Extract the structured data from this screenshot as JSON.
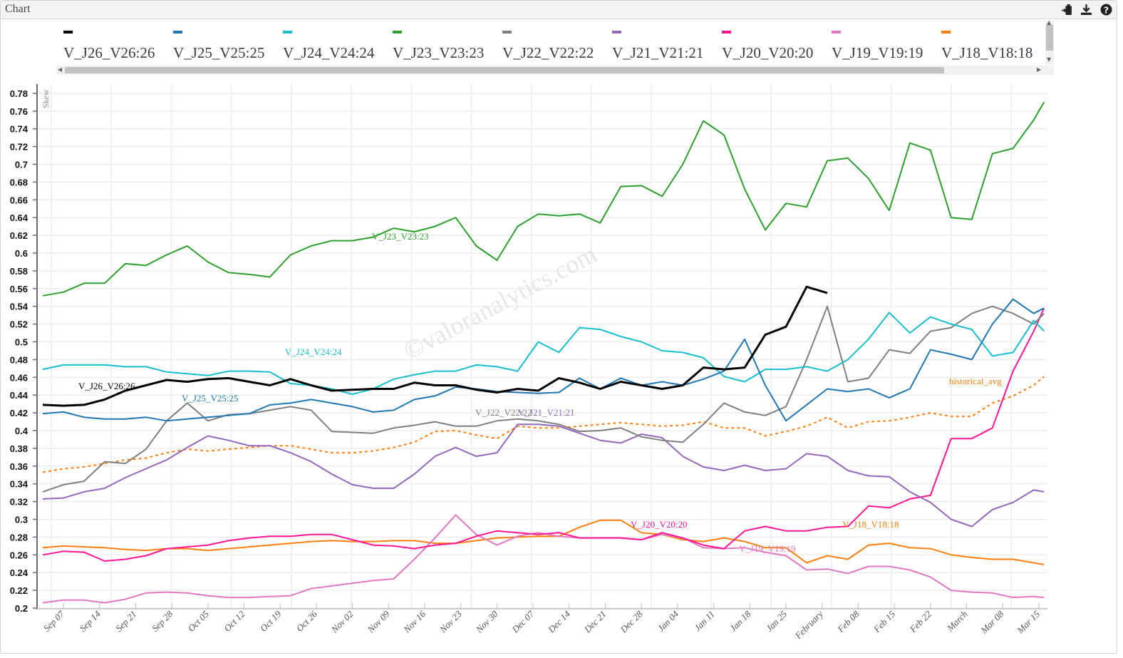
{
  "window": {
    "title": "Chart",
    "icons": [
      "export-icon",
      "download-icon",
      "help-icon"
    ]
  },
  "chart_data": {
    "type": "line",
    "ylabel": "Skew",
    "ylim": [
      0.2,
      0.79
    ],
    "yticks": [
      "0.2",
      "0.22",
      "0.24",
      "0.26",
      "0.28",
      "0.3",
      "0.32",
      "0.34",
      "0.36",
      "0.38",
      "0.4",
      "0.42",
      "0.44",
      "0.46",
      "0.48",
      "0.5",
      "0.52",
      "0.54",
      "0.56",
      "0.58",
      "0.6",
      "0.62",
      "0.64",
      "0.66",
      "0.68",
      "0.7",
      "0.72",
      "0.74",
      "0.76",
      "0.78"
    ],
    "xticks": [
      "Sep 07",
      "Sep 14",
      "Sep 21",
      "Sep 28",
      "Oct 05",
      "Oct 12",
      "Oct 19",
      "Oct 26",
      "Nov 02",
      "Nov 09",
      "Nov 16",
      "Nov 23",
      "Nov 30",
      "Dec 07",
      "Dec 14",
      "Dec 21",
      "Dec 28",
      "Jan 04",
      "Jan 11",
      "Jan 18",
      "Jan 25",
      "February",
      "Feb 08",
      "Feb 15",
      "Feb 22",
      "March",
      "Mar 08",
      "Mar 15"
    ],
    "grid": true,
    "legend_position": "top",
    "watermark": "©valoranalytics.com",
    "x": [
      "Sep 03",
      "Sep 07",
      "Sep 11",
      "Sep 15",
      "Sep 19",
      "Sep 23",
      "Sep 27",
      "Oct 01",
      "Oct 05",
      "Oct 09",
      "Oct 13",
      "Oct 17",
      "Oct 21",
      "Oct 25",
      "Oct 29",
      "Nov 02",
      "Nov 06",
      "Nov 10",
      "Nov 14",
      "Nov 18",
      "Nov 22",
      "Nov 26",
      "Nov 30",
      "Dec 04",
      "Dec 08",
      "Dec 12",
      "Dec 16",
      "Dec 20",
      "Dec 24",
      "Dec 28",
      "Jan 01",
      "Jan 05",
      "Jan 09",
      "Jan 13",
      "Jan 17",
      "Jan 21",
      "Jan 25",
      "Jan 29",
      "Feb 02",
      "Feb 06",
      "Feb 10",
      "Feb 14",
      "Feb 18",
      "Feb 22",
      "Feb 26",
      "Mar 02",
      "Mar 06",
      "Mar 10",
      "Mar 14",
      "Mar 16"
    ],
    "series": [
      {
        "name": "V_J26_V26:26",
        "color": "#000000",
        "width": 3,
        "values": [
          0.429,
          0.428,
          0.429,
          0.435,
          0.445,
          0.451,
          0.457,
          0.455,
          0.458,
          0.459,
          0.455,
          0.451,
          0.458,
          0.451,
          0.445,
          0.446,
          0.447,
          0.447,
          0.454,
          0.451,
          0.451,
          0.446,
          0.443,
          0.447,
          0.445,
          0.459,
          0.454,
          0.447,
          0.455,
          0.451,
          0.447,
          0.451,
          0.471,
          0.469,
          0.471,
          0.508,
          0.517,
          0.562,
          0.555,
          null,
          null,
          null,
          null,
          null,
          null,
          null,
          null,
          null,
          null,
          null
        ]
      },
      {
        "name": "V_J25_V25:25",
        "color": "#1f77b4",
        "width": 2,
        "values": [
          0.419,
          0.421,
          0.415,
          0.413,
          0.413,
          0.415,
          0.411,
          0.413,
          0.415,
          0.417,
          0.419,
          0.429,
          0.431,
          0.435,
          0.431,
          0.427,
          0.421,
          0.423,
          0.435,
          0.439,
          0.449,
          0.447,
          0.444,
          0.443,
          0.442,
          0.443,
          0.459,
          0.447,
          0.459,
          0.451,
          0.455,
          0.451,
          0.458,
          0.467,
          0.503,
          0.451,
          0.411,
          0.429,
          0.447,
          0.444,
          0.447,
          0.437,
          0.447,
          0.491,
          0.486,
          0.48,
          0.52,
          0.548,
          0.532,
          0.538
        ]
      },
      {
        "name": "V_J24_V24:24",
        "color": "#17becf",
        "width": 2,
        "values": [
          0.469,
          0.474,
          0.474,
          0.474,
          0.472,
          0.472,
          0.466,
          0.464,
          0.462,
          0.467,
          0.467,
          0.466,
          0.453,
          0.451,
          0.447,
          0.441,
          0.447,
          0.458,
          0.463,
          0.467,
          0.467,
          0.474,
          0.472,
          0.467,
          0.5,
          0.488,
          0.516,
          0.514,
          0.506,
          0.5,
          0.49,
          0.488,
          0.482,
          0.461,
          0.455,
          0.469,
          0.469,
          0.472,
          0.467,
          0.48,
          0.503,
          0.533,
          0.51,
          0.528,
          0.52,
          0.514,
          0.484,
          0.488,
          0.524,
          0.512
        ]
      },
      {
        "name": "V_J23_V23:23",
        "color": "#2ca02c",
        "width": 2,
        "values": [
          0.552,
          0.556,
          0.566,
          0.566,
          0.588,
          0.586,
          0.598,
          0.608,
          0.59,
          0.578,
          0.576,
          0.573,
          0.598,
          0.608,
          0.614,
          0.614,
          0.618,
          0.628,
          0.624,
          0.63,
          0.64,
          0.608,
          0.592,
          0.63,
          0.644,
          0.642,
          0.644,
          0.634,
          0.675,
          0.676,
          0.664,
          0.7,
          0.749,
          0.733,
          0.672,
          0.626,
          0.656,
          0.652,
          0.704,
          0.707,
          0.684,
          0.648,
          0.724,
          0.716,
          0.64,
          0.638,
          0.712,
          0.718,
          0.75,
          0.77
        ]
      },
      {
        "name": "V_J22_V22:22",
        "color": "#7f7f7f",
        "width": 2,
        "values": [
          0.331,
          0.339,
          0.343,
          0.365,
          0.363,
          0.379,
          0.411,
          0.431,
          0.411,
          0.418,
          0.419,
          0.423,
          0.427,
          0.423,
          0.399,
          0.398,
          0.397,
          0.403,
          0.406,
          0.41,
          0.405,
          0.405,
          0.411,
          0.413,
          0.411,
          0.407,
          0.399,
          0.4,
          0.403,
          0.393,
          0.389,
          0.387,
          0.407,
          0.431,
          0.421,
          0.417,
          0.427,
          0.48,
          0.54,
          0.455,
          0.459,
          0.491,
          0.487,
          0.512,
          0.516,
          0.532,
          0.54,
          0.532,
          0.52,
          0.532
        ]
      },
      {
        "name": "V_J21_V21:21",
        "color": "#9467bd",
        "width": 2,
        "values": [
          0.323,
          0.324,
          0.331,
          0.335,
          0.347,
          0.357,
          0.367,
          0.381,
          0.394,
          0.389,
          0.383,
          0.383,
          0.375,
          0.365,
          0.351,
          0.339,
          0.335,
          0.335,
          0.351,
          0.371,
          0.381,
          0.371,
          0.375,
          0.407,
          0.407,
          0.405,
          0.397,
          0.389,
          0.386,
          0.396,
          0.392,
          0.371,
          0.359,
          0.355,
          0.361,
          0.355,
          0.357,
          0.374,
          0.371,
          0.355,
          0.349,
          0.348,
          0.331,
          0.319,
          0.3,
          0.292,
          0.311,
          0.319,
          0.333,
          0.331
        ]
      },
      {
        "name": "V_J20_V20:20",
        "color": "#ff1493",
        "width": 2,
        "values": [
          0.26,
          0.264,
          0.263,
          0.253,
          0.255,
          0.259,
          0.267,
          0.269,
          0.271,
          0.276,
          0.279,
          0.281,
          0.281,
          0.283,
          0.283,
          0.277,
          0.271,
          0.27,
          0.267,
          0.271,
          0.273,
          0.281,
          0.287,
          0.285,
          0.283,
          0.285,
          0.279,
          0.279,
          0.279,
          0.277,
          0.285,
          0.279,
          0.271,
          0.267,
          0.287,
          0.292,
          0.287,
          0.287,
          0.291,
          0.292,
          0.315,
          0.313,
          0.323,
          0.327,
          0.391,
          0.391,
          0.403,
          0.467,
          0.512,
          0.538
        ]
      },
      {
        "name": "V_J19_V19:19",
        "color": "#e377c2",
        "width": 2,
        "values": [
          0.206,
          0.209,
          0.209,
          0.206,
          0.21,
          0.217,
          0.218,
          0.217,
          0.214,
          0.212,
          0.212,
          0.213,
          0.214,
          0.222,
          0.225,
          0.228,
          0.231,
          0.233,
          0.255,
          0.279,
          0.305,
          0.283,
          0.271,
          0.281,
          0.285,
          0.281,
          0.279,
          0.279,
          0.279,
          0.277,
          0.283,
          0.279,
          0.268,
          0.267,
          0.268,
          0.263,
          0.259,
          0.243,
          0.244,
          0.239,
          0.247,
          0.247,
          0.243,
          0.235,
          0.22,
          0.218,
          0.217,
          0.212,
          0.213,
          0.212
        ]
      },
      {
        "name": "V_J18_V18:18",
        "color": "#ff7f0e",
        "width": 2,
        "values": [
          0.268,
          0.27,
          0.269,
          0.268,
          0.266,
          0.265,
          0.267,
          0.267,
          0.265,
          0.267,
          0.269,
          0.271,
          0.273,
          0.275,
          0.276,
          0.275,
          0.275,
          0.276,
          0.276,
          0.273,
          0.273,
          0.276,
          0.279,
          0.28,
          0.281,
          0.281,
          0.291,
          0.299,
          0.299,
          0.285,
          0.283,
          0.277,
          0.275,
          0.279,
          0.275,
          0.268,
          0.268,
          0.251,
          0.259,
          0.255,
          0.271,
          0.273,
          0.268,
          0.267,
          0.26,
          0.257,
          0.255,
          0.255,
          0.251,
          0.249
        ]
      },
      {
        "name": "historical_avg",
        "color": "#ff7f0e",
        "width": 2,
        "dashed": true,
        "values": [
          0.353,
          0.357,
          0.359,
          0.363,
          0.367,
          0.369,
          0.375,
          0.379,
          0.377,
          0.379,
          0.381,
          0.383,
          0.383,
          0.379,
          0.375,
          0.375,
          0.377,
          0.381,
          0.387,
          0.399,
          0.4,
          0.395,
          0.391,
          0.405,
          0.403,
          0.403,
          0.405,
          0.407,
          0.409,
          0.407,
          0.405,
          0.406,
          0.41,
          0.403,
          0.403,
          0.394,
          0.399,
          0.405,
          0.415,
          0.403,
          0.41,
          0.411,
          0.415,
          0.42,
          0.416,
          0.416,
          0.431,
          0.439,
          0.451,
          0.461
        ]
      }
    ]
  },
  "legend": {
    "items": [
      {
        "label": "V_J26_V26:26",
        "color": "#000000"
      },
      {
        "label": "V_J25_V25:25",
        "color": "#1f77b4"
      },
      {
        "label": "V_J24_V24:24",
        "color": "#17becf"
      },
      {
        "label": "V_J23_V23:23",
        "color": "#2ca02c"
      },
      {
        "label": "V_J22_V22:22",
        "color": "#7f7f7f"
      },
      {
        "label": "V_J21_V21:21",
        "color": "#9467bd"
      },
      {
        "label": "V_J20_V20:20",
        "color": "#ff1493"
      },
      {
        "label": "V_J19_V19:19",
        "color": "#e377c2"
      },
      {
        "label": "V_J18_V18:18",
        "color": "#ff7f0e"
      }
    ]
  }
}
